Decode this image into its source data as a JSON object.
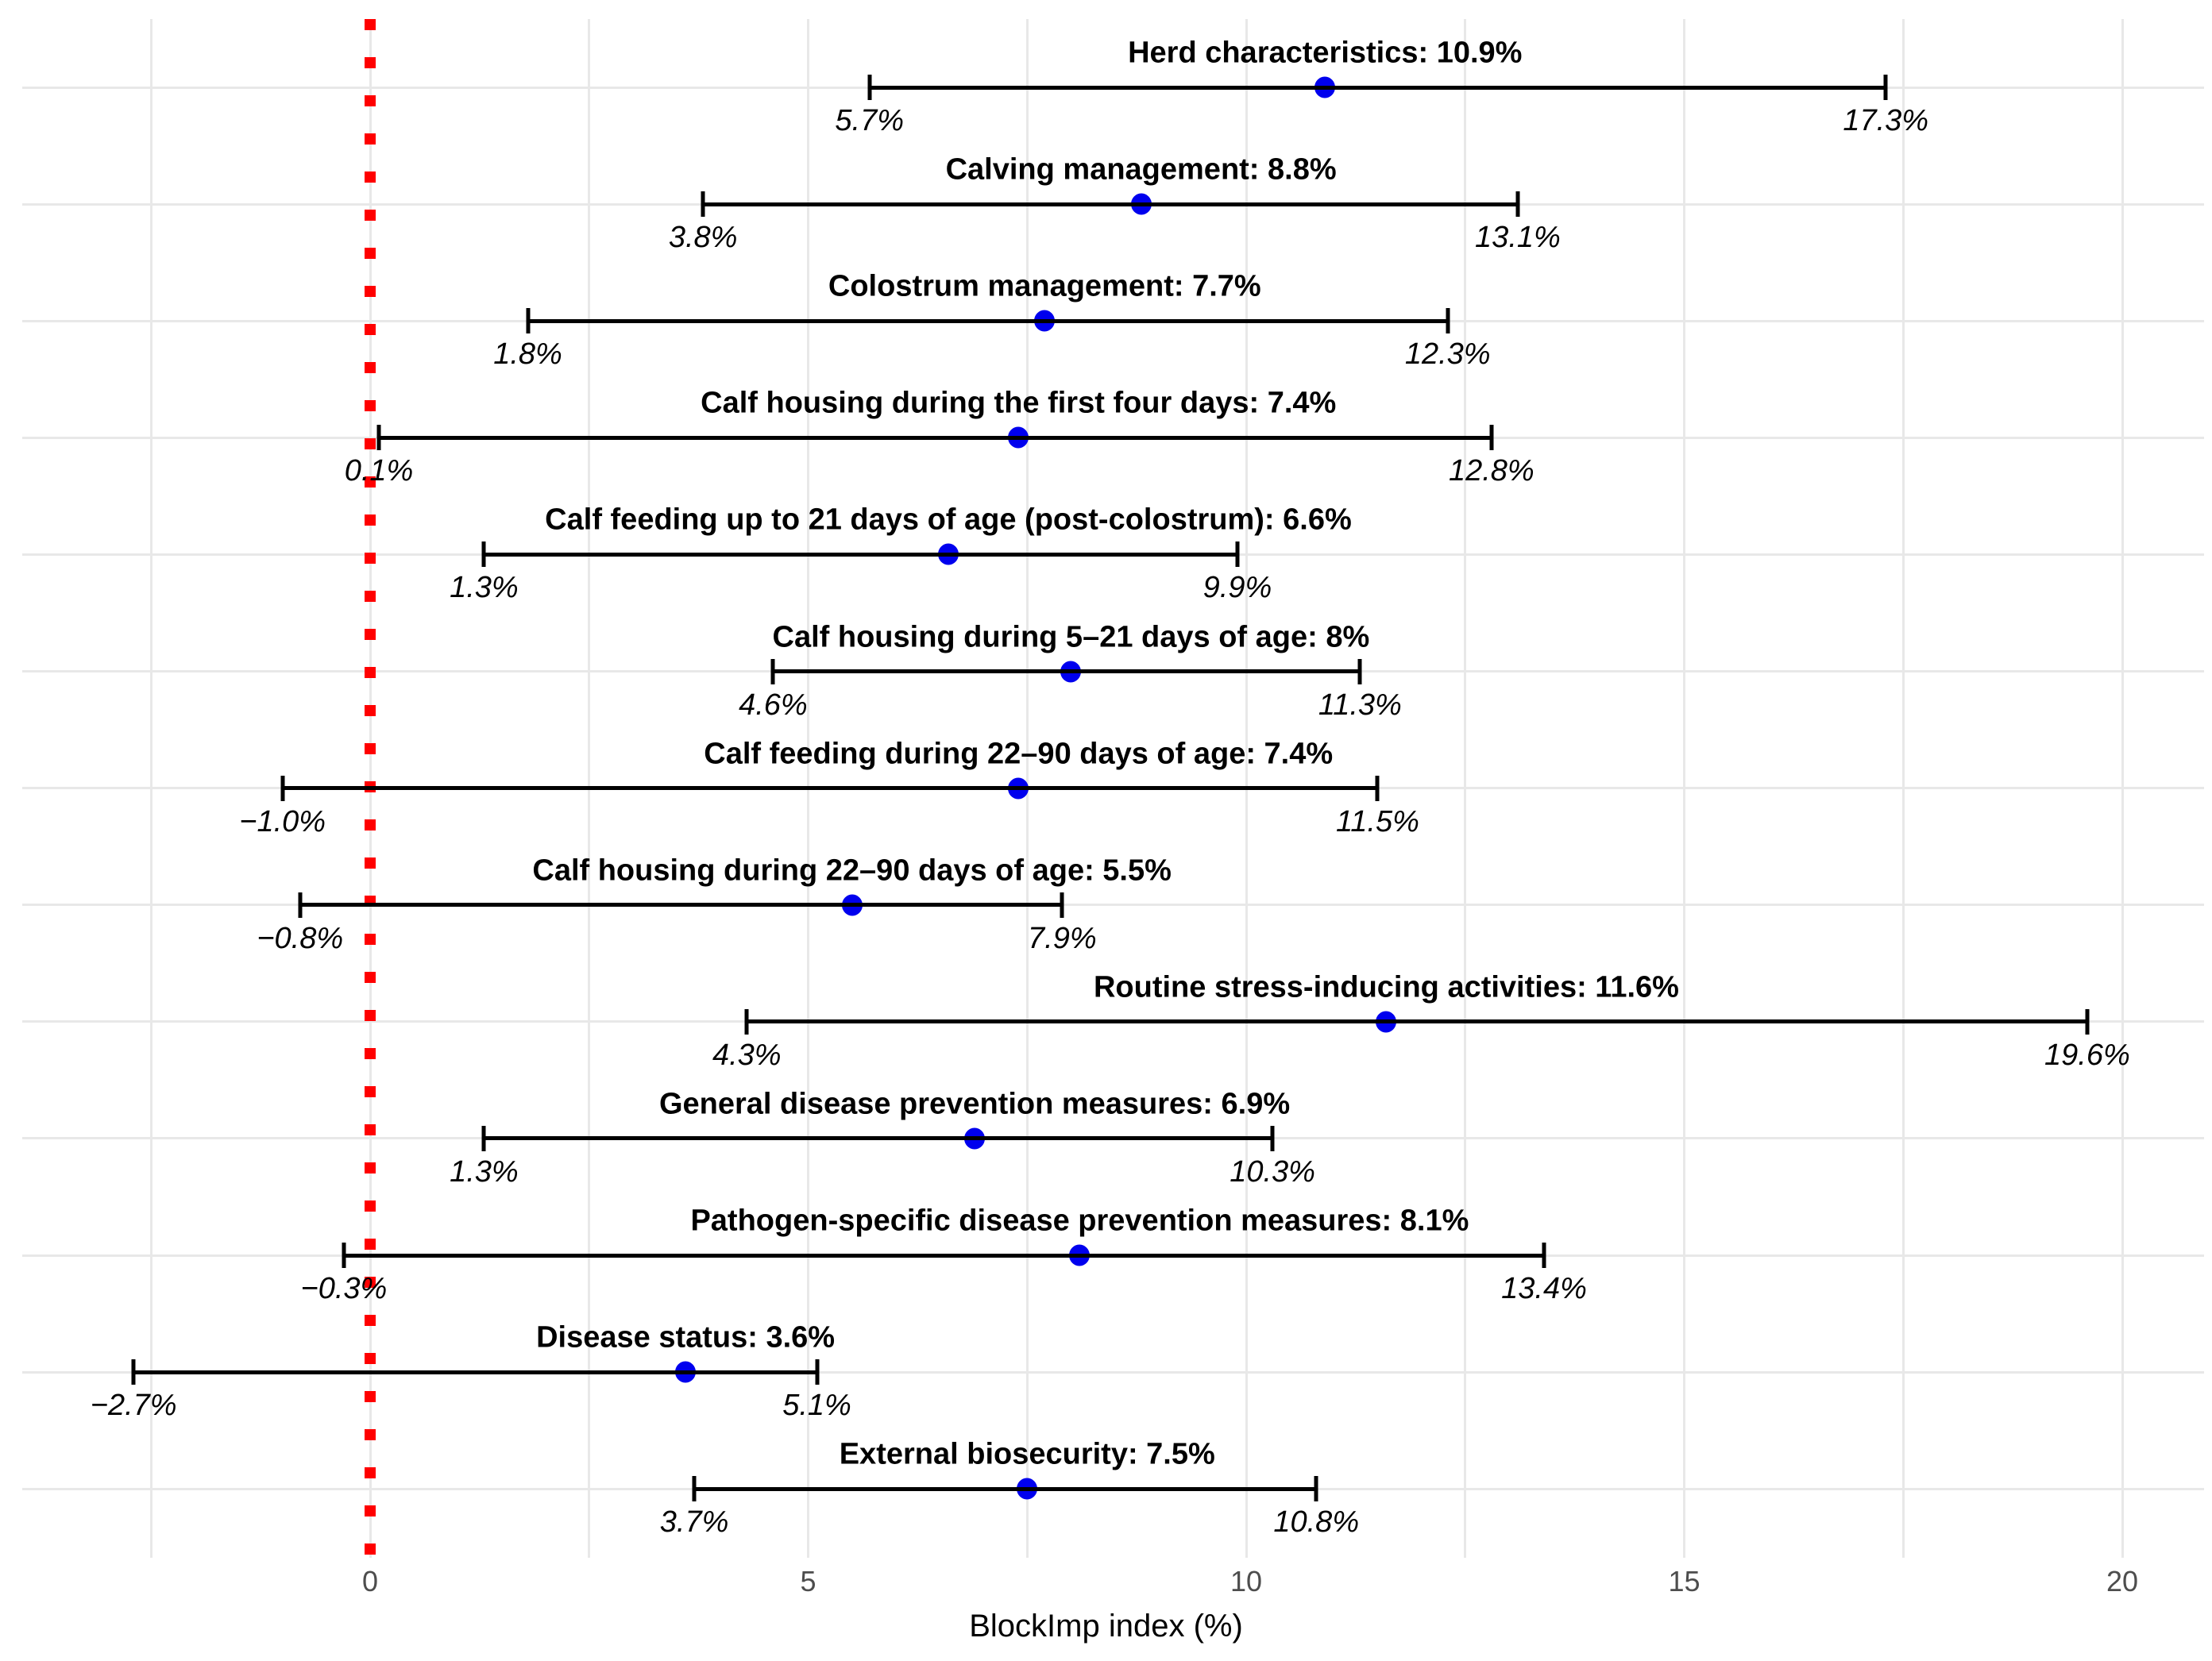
{
  "chart_data": {
    "type": "scatter",
    "subtype": "forest-plot-dot-interval",
    "title": "",
    "xlabel": "BlockImp index (%)",
    "ylabel": "",
    "xlim": [
      -4.2,
      21.0
    ],
    "grid": "on",
    "legend": "none",
    "x_ticks": [
      0,
      5,
      10,
      15,
      20
    ],
    "x_tick_labels": [
      "0",
      "5",
      "10",
      "15",
      "20"
    ],
    "x_major_gridlines": [
      0,
      5,
      10,
      15,
      20
    ],
    "x_minor_gridlines": [
      -2.5,
      2.5,
      7.5,
      12.5,
      17.5
    ],
    "reference_line_x": 0,
    "colors": {
      "point": "#0000ee",
      "interval": "#000000",
      "reference_line": "#ff0000",
      "gridline": "#e8e8e8",
      "tick_label": "#4d4d4d",
      "text": "#000000",
      "background": "#ffffff"
    },
    "rows": [
      {
        "label": "Herd characteristics: 10.9%",
        "estimate": 10.9,
        "lower": 5.7,
        "upper": 17.3,
        "lower_label": "5.7%",
        "upper_label": "17.3%"
      },
      {
        "label": "Calving management: 8.8%",
        "estimate": 8.8,
        "lower": 3.8,
        "upper": 13.1,
        "lower_label": "3.8%",
        "upper_label": "13.1%"
      },
      {
        "label": "Colostrum management: 7.7%",
        "estimate": 7.7,
        "lower": 1.8,
        "upper": 12.3,
        "lower_label": "1.8%",
        "upper_label": "12.3%"
      },
      {
        "label": "Calf housing during the first four days: 7.4%",
        "estimate": 7.4,
        "lower": 0.1,
        "upper": 12.8,
        "lower_label": "0.1%",
        "upper_label": "12.8%"
      },
      {
        "label": "Calf feeding up to 21 days of age (post-colostrum): 6.6%",
        "estimate": 6.6,
        "lower": 1.3,
        "upper": 9.9,
        "lower_label": "1.3%",
        "upper_label": "9.9%"
      },
      {
        "label": "Calf housing during 5–21 days of age: 8%",
        "estimate": 8.0,
        "lower": 4.6,
        "upper": 11.3,
        "lower_label": "4.6%",
        "upper_label": "11.3%"
      },
      {
        "label": "Calf feeding during 22–90 days of age: 7.4%",
        "estimate": 7.4,
        "lower": -1.0,
        "upper": 11.5,
        "lower_label": "−1.0%",
        "upper_label": "11.5%"
      },
      {
        "label": "Calf housing during 22–90 days of age: 5.5%",
        "estimate": 5.5,
        "lower": -0.8,
        "upper": 7.9,
        "lower_label": "−0.8%",
        "upper_label": "7.9%"
      },
      {
        "label": "Routine stress-inducing activities: 11.6%",
        "estimate": 11.6,
        "lower": 4.3,
        "upper": 19.6,
        "lower_label": "4.3%",
        "upper_label": "19.6%"
      },
      {
        "label": "General disease prevention measures: 6.9%",
        "estimate": 6.9,
        "lower": 1.3,
        "upper": 10.3,
        "lower_label": "1.3%",
        "upper_label": "10.3%"
      },
      {
        "label": "Pathogen-specific disease prevention measures: 8.1%",
        "estimate": 8.1,
        "lower": -0.3,
        "upper": 13.4,
        "lower_label": "−0.3%",
        "upper_label": "13.4%"
      },
      {
        "label": "Disease status: 3.6%",
        "estimate": 3.6,
        "lower": -2.7,
        "upper": 5.1,
        "lower_label": "−2.7%",
        "upper_label": "5.1%"
      },
      {
        "label": "External biosecurity: 7.5%",
        "estimate": 7.5,
        "lower": 3.7,
        "upper": 10.8,
        "lower_label": "3.7%",
        "upper_label": "10.8%"
      }
    ]
  }
}
